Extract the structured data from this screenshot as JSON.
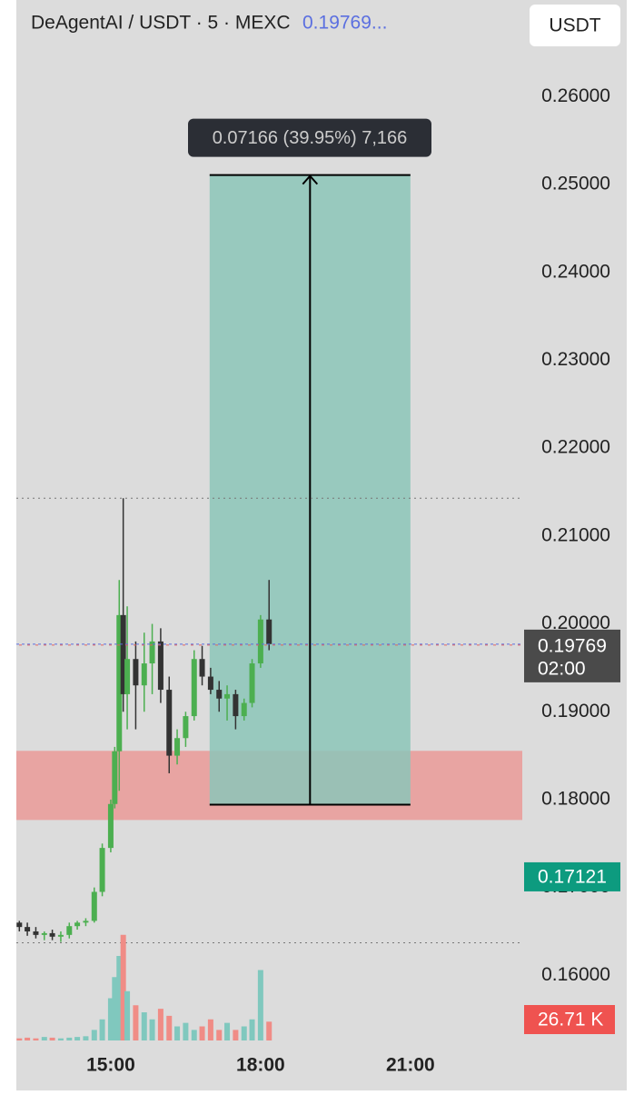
{
  "chart_data": {
    "type": "candlestick",
    "title": "DeAgentAI / USDT · 5 · MEXC",
    "title_price": "0.19769...",
    "currency_button": "USDT",
    "x": [
      13.17,
      13.33,
      13.5,
      13.67,
      13.83,
      14.0,
      14.17,
      14.33,
      14.5,
      14.67,
      14.83,
      15.0,
      15.08,
      15.17,
      15.25,
      15.33,
      15.5,
      15.67,
      15.83,
      16.0,
      16.17,
      16.33,
      16.5,
      16.67,
      16.83,
      17.0,
      17.17,
      17.33,
      17.5,
      17.67,
      17.83,
      18.0,
      18.17
    ],
    "open": [
      0.166,
      0.1655,
      0.165,
      0.1646,
      0.1648,
      0.1644,
      0.1646,
      0.1656,
      0.166,
      0.1662,
      0.1695,
      0.1745,
      0.1795,
      0.1855,
      0.201,
      0.192,
      0.196,
      0.193,
      0.1955,
      0.198,
      0.1925,
      0.185,
      0.187,
      0.1895,
      0.196,
      0.194,
      0.1925,
      0.1915,
      0.192,
      0.1895,
      0.191,
      0.1955,
      0.2005
    ],
    "high": [
      0.1662,
      0.166,
      0.1655,
      0.165,
      0.1652,
      0.165,
      0.166,
      0.1662,
      0.1665,
      0.17,
      0.175,
      0.18,
      0.186,
      0.205,
      0.2143,
      0.202,
      0.198,
      0.199,
      0.2,
      0.1995,
      0.194,
      0.188,
      0.19,
      0.197,
      0.1975,
      0.195,
      0.1935,
      0.193,
      0.1925,
      0.1915,
      0.196,
      0.201,
      0.205
    ],
    "low": [
      0.165,
      0.1645,
      0.1642,
      0.164,
      0.164,
      0.1638,
      0.1642,
      0.1652,
      0.1656,
      0.166,
      0.169,
      0.174,
      0.179,
      0.181,
      0.19,
      0.188,
      0.188,
      0.19,
      0.192,
      0.191,
      0.183,
      0.184,
      0.186,
      0.189,
      0.193,
      0.192,
      0.19,
      0.189,
      0.188,
      0.189,
      0.1905,
      0.195,
      0.197
    ],
    "close": [
      0.1655,
      0.165,
      0.1646,
      0.1648,
      0.1644,
      0.1646,
      0.1656,
      0.166,
      0.1662,
      0.1695,
      0.1745,
      0.1795,
      0.1855,
      0.201,
      0.192,
      0.196,
      0.193,
      0.1955,
      0.198,
      0.1925,
      0.185,
      0.187,
      0.1895,
      0.196,
      0.194,
      0.1925,
      0.1915,
      0.192,
      0.1895,
      0.191,
      0.1955,
      0.2005,
      0.1977
    ],
    "volume": [
      3,
      4,
      3,
      5,
      4,
      3,
      4,
      5,
      6,
      15,
      30,
      60,
      90,
      120,
      150,
      70,
      50,
      40,
      30,
      45,
      35,
      20,
      25,
      15,
      20,
      30,
      15,
      25,
      15,
      20,
      30,
      100,
      26.71
    ],
    "up_color": "#4caf50",
    "down_color": "#333333",
    "volume_up_color": "#80c8be",
    "volume_down_color": "#f08c86",
    "xlim": [
      13.11,
      23.24
    ],
    "xticks": [
      {
        "value": 15,
        "label": "15:00"
      },
      {
        "value": 18,
        "label": "18:00"
      },
      {
        "value": 21,
        "label": "21:00"
      }
    ],
    "ylim": [
      0.1469,
      0.271
    ],
    "yticks": [
      {
        "value": 0.16,
        "label": "0.16000"
      },
      {
        "value": 0.17,
        "label": "0.17000"
      },
      {
        "value": 0.18,
        "label": "0.18000"
      },
      {
        "value": 0.19,
        "label": "0.19000"
      },
      {
        "value": 0.2,
        "label": "0.20000"
      },
      {
        "value": 0.21,
        "label": "0.21000"
      },
      {
        "value": 0.22,
        "label": "0.22000"
      },
      {
        "value": 0.23,
        "label": "0.23000"
      },
      {
        "value": 0.24,
        "label": "0.24000"
      },
      {
        "value": 0.25,
        "label": "0.25000"
      },
      {
        "value": 0.26,
        "label": "0.26000"
      }
    ],
    "y2lim": [
      0,
      200
    ],
    "levels": [
      0.2143,
      0.1637
    ],
    "zone": {
      "low": 0.17768,
      "high": 0.18555,
      "color": "#e8a4a2"
    },
    "measure": {
      "from": 0.17942,
      "to": 0.25108,
      "t_start": 16.98,
      "t_end": 21.0,
      "label": "0.07166 (39.95%) 7,166",
      "color": "#8cc5b8"
    },
    "last_price": {
      "price": 0.19769,
      "countdown": "02:00",
      "color": "#4a4a4a"
    },
    "open_price": {
      "price": 0.17121,
      "color": "#0d9b7f"
    },
    "volume_tag": {
      "label": "26.71 K",
      "color": "#ef5350"
    }
  }
}
